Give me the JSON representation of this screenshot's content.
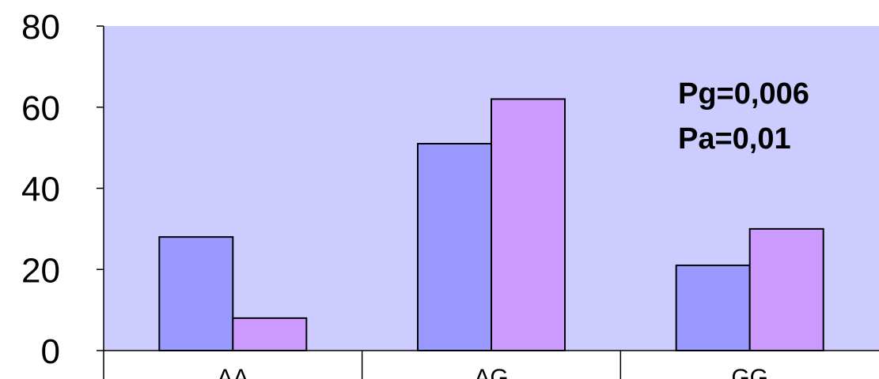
{
  "chart_data": {
    "type": "bar",
    "categories": [
      "AA",
      "AG",
      "GG"
    ],
    "series": [
      {
        "values": [
          28,
          51,
          21
        ],
        "color": "#9999ff"
      },
      {
        "values": [
          8,
          62,
          30
        ],
        "color": "#cc99ff"
      }
    ],
    "ylim": [
      0,
      80
    ],
    "yticks": [
      "0",
      "20",
      "40",
      "60",
      "80"
    ],
    "annotations": [
      "Pg=0,006",
      "Pa=0,01"
    ],
    "plot_background": "#ccccff",
    "grid": false,
    "legend": "none"
  }
}
